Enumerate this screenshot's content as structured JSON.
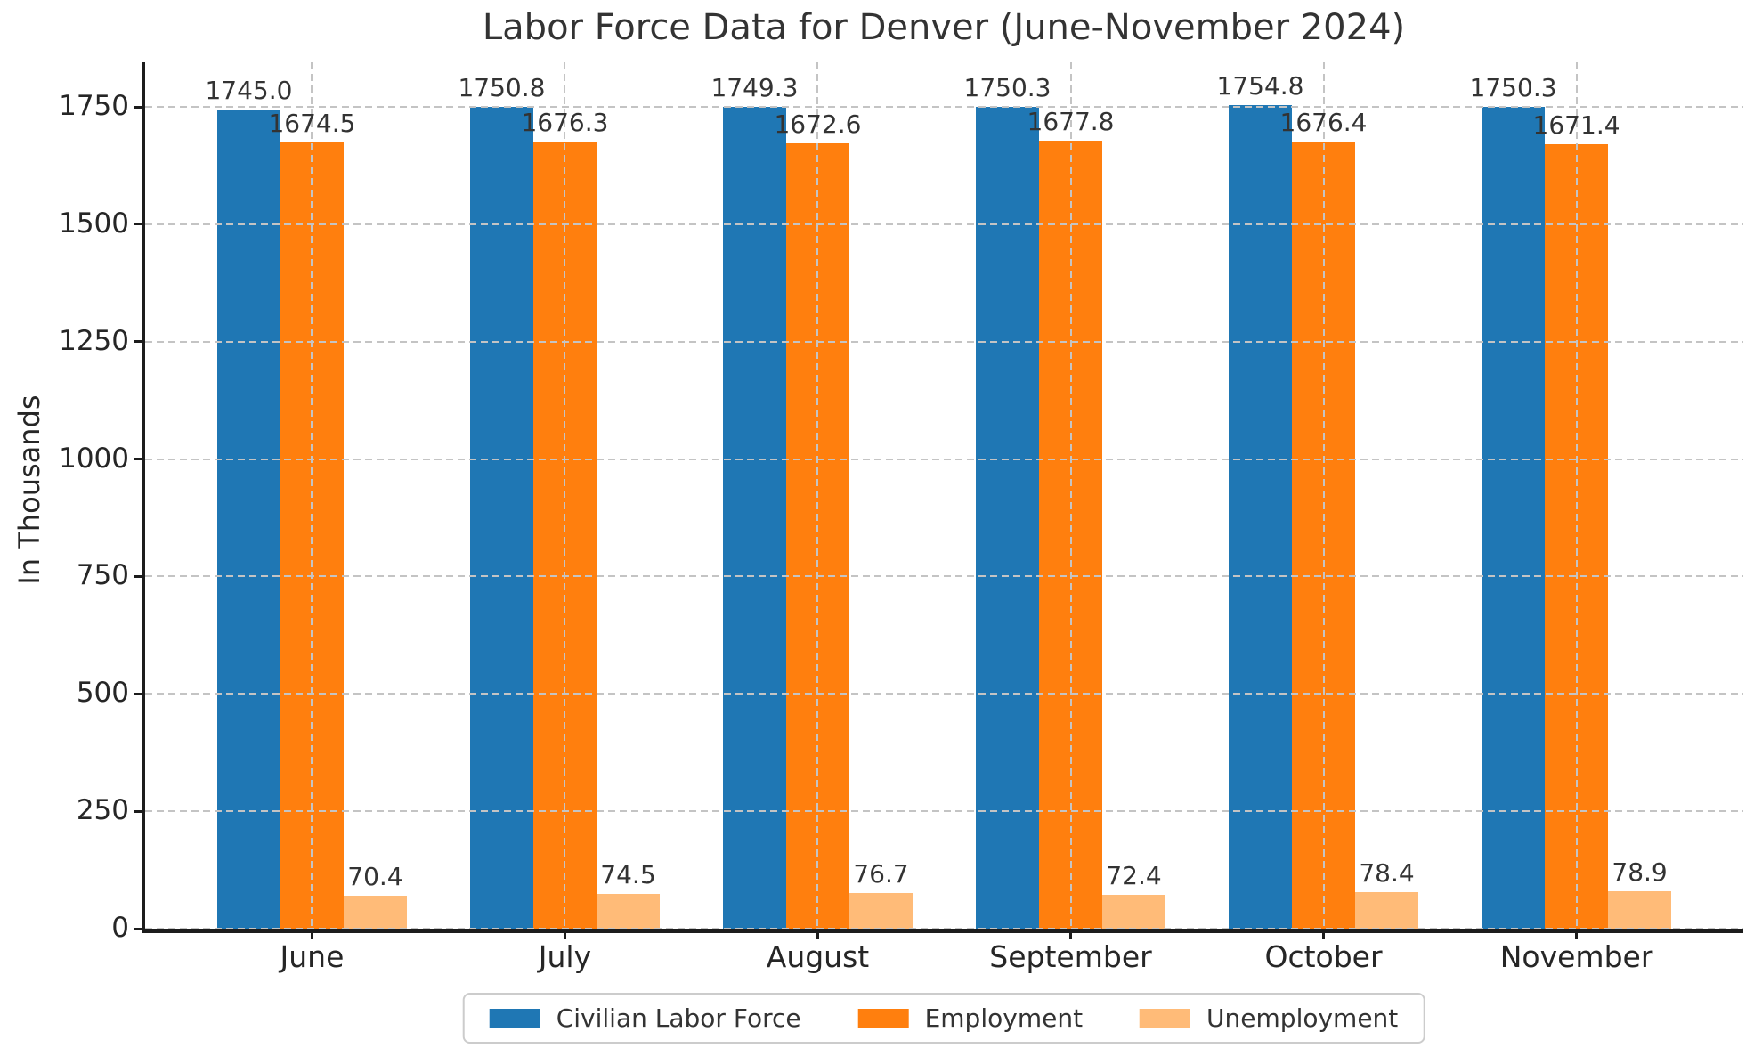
{
  "chart_data": {
    "type": "bar",
    "title": "Labor Force Data for Denver (June-November 2024)",
    "xlabel": "",
    "ylabel": "In Thousands",
    "categories": [
      "June",
      "July",
      "August",
      "September",
      "October",
      "November"
    ],
    "series": [
      {
        "name": "Civilian Labor Force",
        "color": "#1f77b4",
        "values": [
          1745.0,
          1750.8,
          1749.3,
          1750.3,
          1754.8,
          1750.3
        ]
      },
      {
        "name": "Employment",
        "color": "#ff7f0e",
        "values": [
          1674.5,
          1676.3,
          1672.6,
          1677.8,
          1676.4,
          1671.4
        ]
      },
      {
        "name": "Unemployment",
        "color": "#ffbb78",
        "values": [
          70.4,
          74.5,
          76.7,
          72.4,
          78.4,
          78.9
        ]
      }
    ],
    "value_labels_decimals": 1,
    "yticks": [
      0,
      250,
      500,
      750,
      1000,
      1250,
      1500,
      1750
    ],
    "ylim": [
      0,
      1845
    ],
    "grid": "dashed, horizontal and vertical, drawn over bars",
    "legend_position": "bottom-center",
    "colors": {
      "grid": "#c4c4c4",
      "spine": "#1c1c1c",
      "text": "#333333"
    }
  }
}
